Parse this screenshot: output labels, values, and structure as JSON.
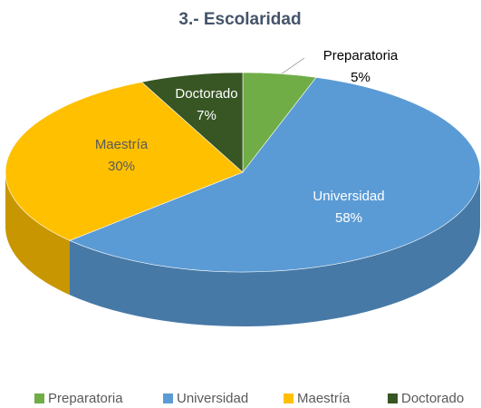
{
  "chart_data": {
    "type": "pie",
    "title": "3.- Escolaridad",
    "categories": [
      "Preparatoria",
      "Universidad",
      "Maestría",
      "Doctorado"
    ],
    "values": [
      5,
      58,
      30,
      7
    ],
    "value_labels": [
      "5%",
      "58%",
      "30%",
      "7%"
    ],
    "colors": [
      "#70ad47",
      "#5b9bd5",
      "#ffc000",
      "#375623"
    ],
    "legend": "bottom"
  }
}
